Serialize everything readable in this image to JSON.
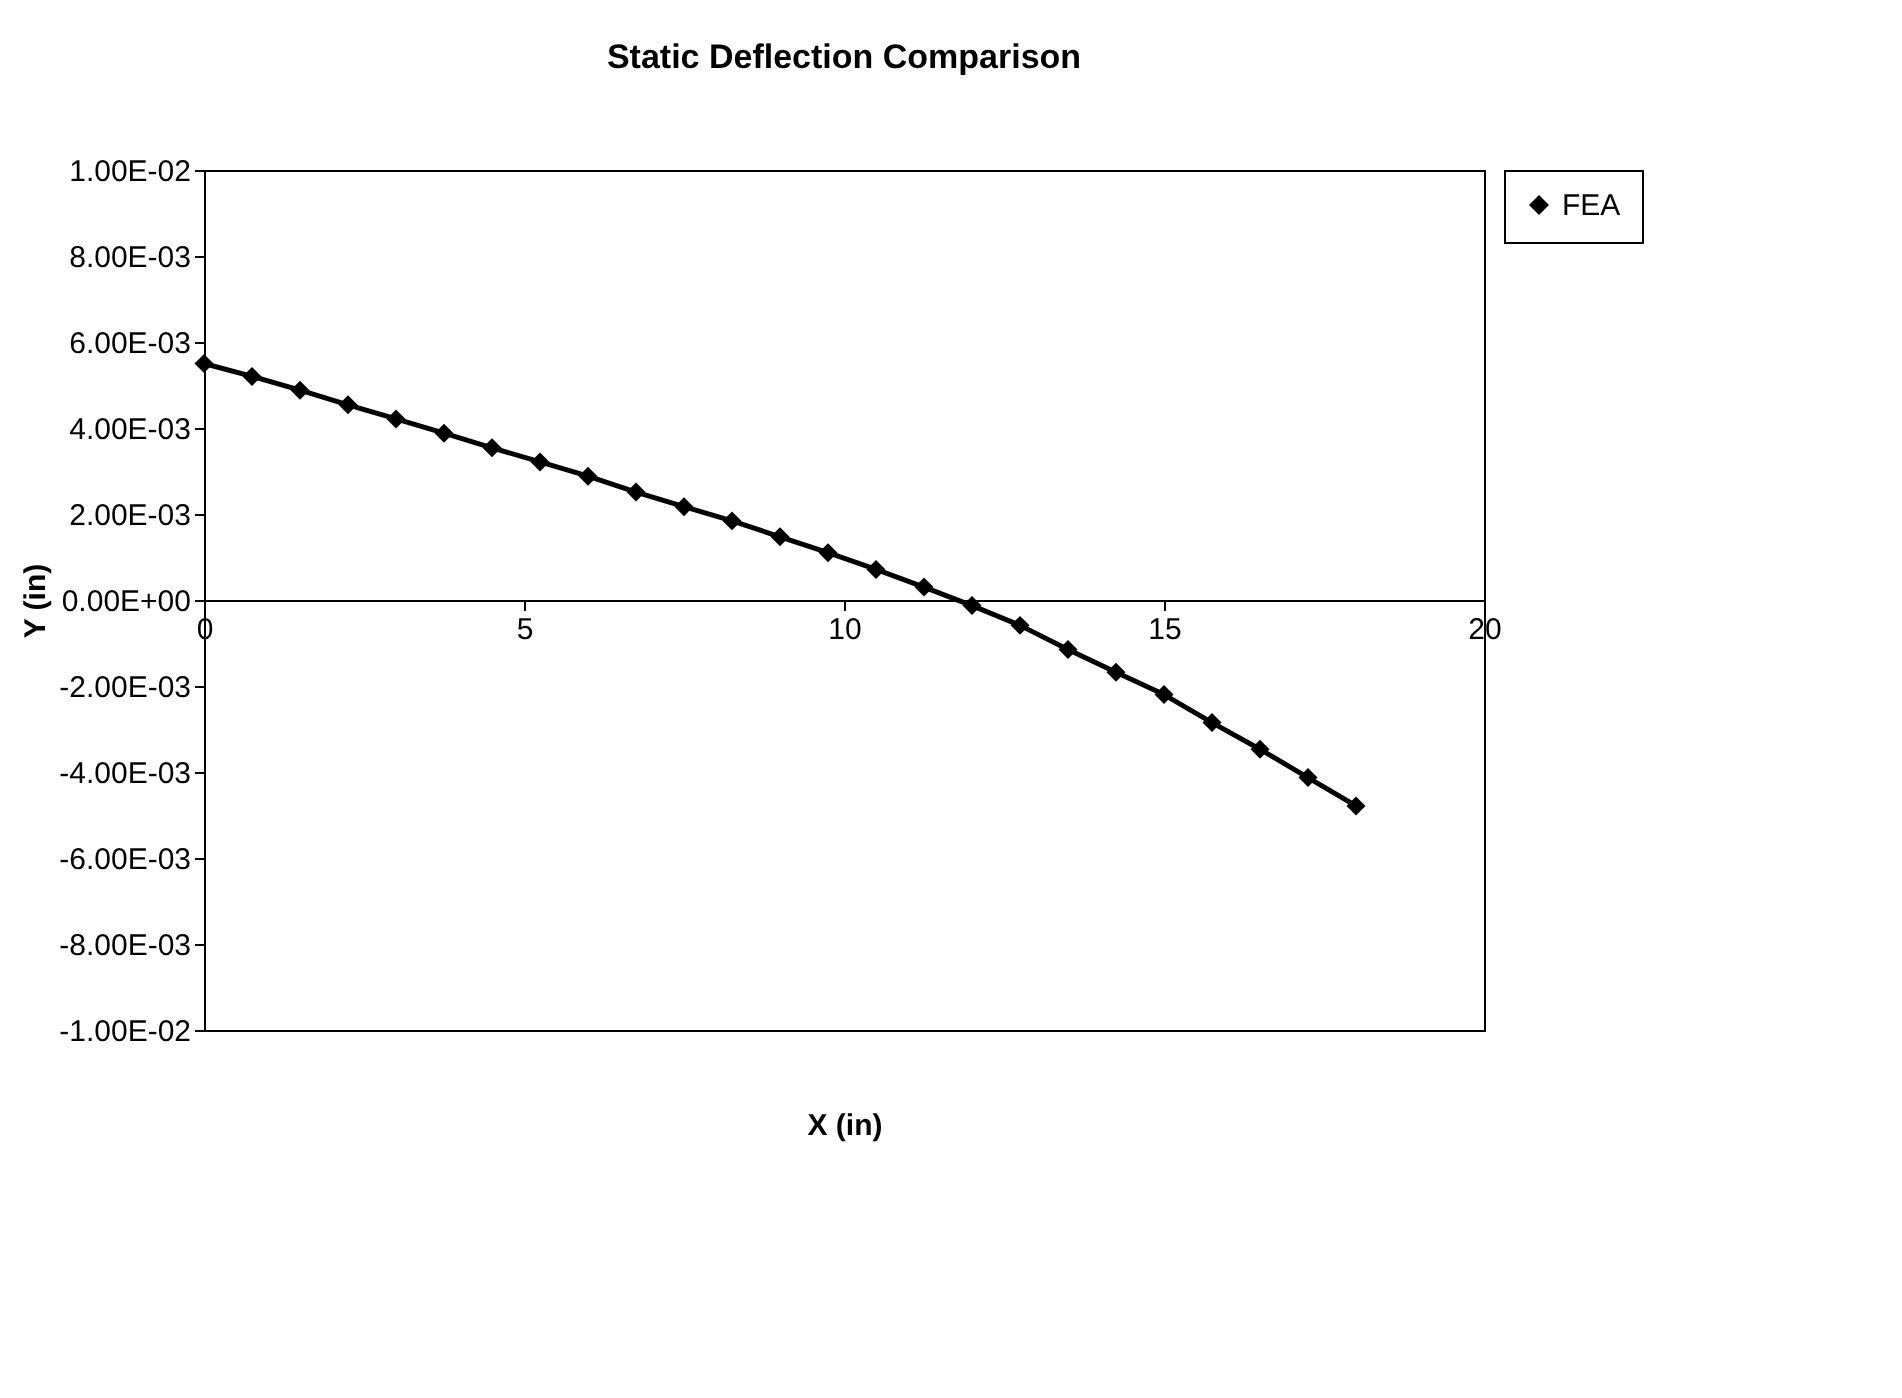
{
  "chart_data": {
    "type": "line",
    "title": "Static Deflection Comparison",
    "xlabel": "X (in)",
    "ylabel": "Y (in)",
    "x": [
      0,
      0.75,
      1.5,
      2.25,
      3,
      3.75,
      4.5,
      5.25,
      6,
      6.75,
      7.5,
      8.25,
      9,
      9.75,
      10.5,
      11.25,
      12,
      12.75,
      13.5,
      14.25,
      15,
      15.75,
      16.5,
      17.25,
      18
    ],
    "series": [
      {
        "name": "FEA",
        "type": "scatter",
        "marker": "diamond",
        "color": "#000000",
        "values": [
          0.0055,
          0.0052,
          0.00488,
          0.00454,
          0.00421,
          0.00388,
          0.00354,
          0.00321,
          0.00288,
          0.00251,
          0.00217,
          0.00184,
          0.00147,
          0.0011,
          0.00071,
          0.0003,
          -0.00013,
          -0.00059,
          -0.00115,
          -0.00168,
          -0.0022,
          -0.00285,
          -0.00347,
          -0.00413,
          -0.00479
        ]
      },
      {
        "type": "line",
        "marker": "none",
        "color": "#000000",
        "values": [
          0.0055,
          0.0052,
          0.00488,
          0.00454,
          0.00421,
          0.00388,
          0.00354,
          0.00321,
          0.00288,
          0.00251,
          0.00217,
          0.00184,
          0.00147,
          0.0011,
          0.00071,
          0.0003,
          -0.00013,
          -0.00059,
          -0.00115,
          -0.00168,
          -0.0022,
          -0.00285,
          -0.00347,
          -0.00413,
          -0.00479
        ]
      }
    ],
    "xlim": [
      0,
      20
    ],
    "xticks": [
      0,
      5,
      10,
      15,
      20
    ],
    "ylim": [
      -0.01,
      0.01
    ],
    "yticks": [
      {
        "value": -0.01,
        "label": "-1.00E-02"
      },
      {
        "value": -0.008,
        "label": "-8.00E-03"
      },
      {
        "value": -0.006,
        "label": "-6.00E-03"
      },
      {
        "value": -0.004,
        "label": "-4.00E-03"
      },
      {
        "value": -0.002,
        "label": "-2.00E-03"
      },
      {
        "value": 0,
        "label": "0.00E+00"
      },
      {
        "value": 0.002,
        "label": "2.00E-03"
      },
      {
        "value": 0.004,
        "label": "4.00E-03"
      },
      {
        "value": 0.006,
        "label": "6.00E-03"
      },
      {
        "value": 0.008,
        "label": "8.00E-03"
      },
      {
        "value": 0.01,
        "label": "1.00E-02"
      }
    ],
    "grid": false,
    "legend": "right"
  }
}
